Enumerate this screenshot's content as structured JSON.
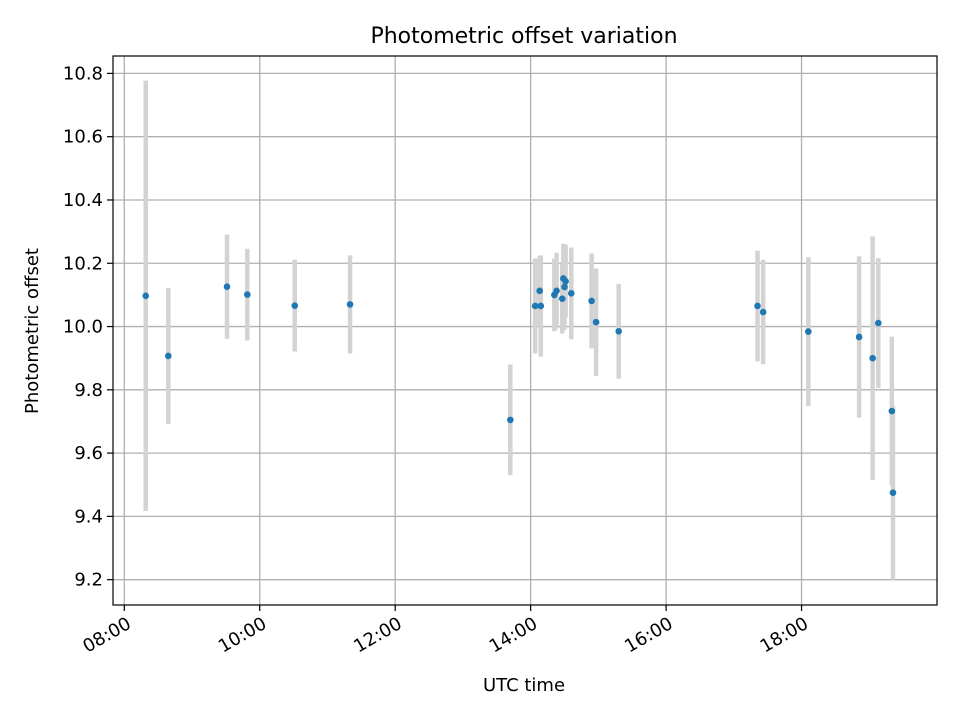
{
  "chart_data": {
    "type": "scatter",
    "title": "Photometric offset variation",
    "xlabel": "UTC time",
    "ylabel": "Photometric offset",
    "x_axis": "time",
    "xlim": [
      "07:50",
      "20:00"
    ],
    "ylim": [
      9.12,
      10.855
    ],
    "xticks": [
      "08:00",
      "10:00",
      "12:00",
      "14:00",
      "16:00",
      "18:00"
    ],
    "yticks": [
      9.2,
      9.4,
      9.6,
      9.8,
      10.0,
      10.2,
      10.4,
      10.6,
      10.8
    ],
    "grid": true,
    "colors": {
      "point": "#1f77b4",
      "errorbar": "#d3d3d3",
      "grid": "#b0b0b0"
    },
    "points": [
      {
        "x": "08:19",
        "y": 10.097,
        "err": 0.68
      },
      {
        "x": "08:39",
        "y": 9.907,
        "err": 0.215
      },
      {
        "x": "09:31",
        "y": 10.126,
        "err": 0.165
      },
      {
        "x": "09:49",
        "y": 10.101,
        "err": 0.145
      },
      {
        "x": "10:31",
        "y": 10.066,
        "err": 0.145
      },
      {
        "x": "11:20",
        "y": 10.07,
        "err": 0.155
      },
      {
        "x": "13:42",
        "y": 9.705,
        "err": 0.175
      },
      {
        "x": "14:04",
        "y": 10.065,
        "err": 0.15
      },
      {
        "x": "14:08",
        "y": 10.113,
        "err": 0.11
      },
      {
        "x": "14:09",
        "y": 10.065,
        "err": 0.16
      },
      {
        "x": "14:21",
        "y": 10.1,
        "err": 0.115
      },
      {
        "x": "14:23",
        "y": 10.113,
        "err": 0.12
      },
      {
        "x": "14:28",
        "y": 10.088,
        "err": 0.11
      },
      {
        "x": "14:29",
        "y": 10.152,
        "err": 0.11
      },
      {
        "x": "14:30",
        "y": 10.125,
        "err": 0.135
      },
      {
        "x": "14:31",
        "y": 10.143,
        "err": 0.115
      },
      {
        "x": "14:36",
        "y": 10.105,
        "err": 0.145
      },
      {
        "x": "14:54",
        "y": 10.081,
        "err": 0.15
      },
      {
        "x": "14:58",
        "y": 10.014,
        "err": 0.17
      },
      {
        "x": "15:18",
        "y": 9.985,
        "err": 0.15
      },
      {
        "x": "17:21",
        "y": 10.065,
        "err": 0.175
      },
      {
        "x": "17:26",
        "y": 10.046,
        "err": 0.165
      },
      {
        "x": "18:06",
        "y": 9.984,
        "err": 0.235
      },
      {
        "x": "18:51",
        "y": 9.967,
        "err": 0.255
      },
      {
        "x": "19:03",
        "y": 9.9,
        "err": 0.385
      },
      {
        "x": "19:08",
        "y": 10.011,
        "err": 0.205
      },
      {
        "x": "19:20",
        "y": 9.733,
        "err": 0.235
      },
      {
        "x": "19:21",
        "y": 9.475,
        "err": 0.275
      }
    ]
  }
}
